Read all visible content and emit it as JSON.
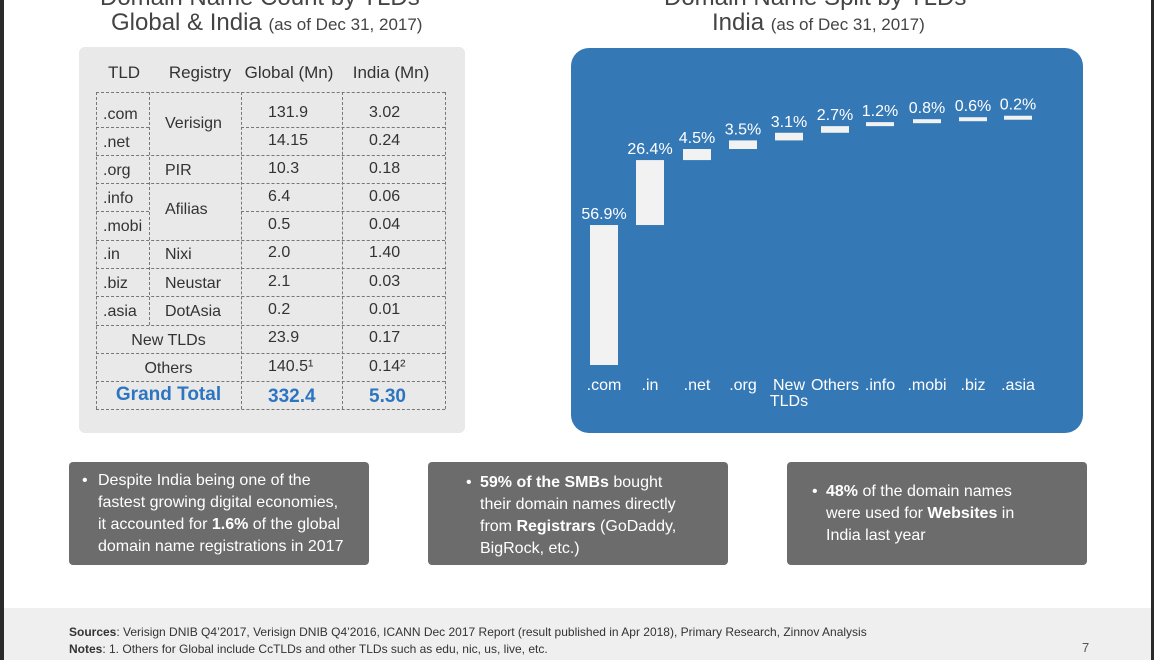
{
  "left": {
    "title_cut": "Domain Name Count by TLDs",
    "title_main": "Global & India",
    "title_sub": "(as of Dec 31, 2017)",
    "headers": [
      "TLD",
      "Registry",
      "Global (Mn)",
      "India (Mn)"
    ],
    "rows": [
      {
        "tld": ".com",
        "global": "131.9",
        "india": "3.02"
      },
      {
        "tld": ".net",
        "global": "14.15",
        "india": "0.24"
      },
      {
        "tld": ".org",
        "global": "10.3",
        "india": "0.18"
      },
      {
        "tld": ".info",
        "global": "6.4",
        "india": "0.06"
      },
      {
        "tld": ".mobi",
        "global": "0.5",
        "india": "0.04"
      },
      {
        "tld": ".in",
        "global": "2.0",
        "india": "1.40"
      },
      {
        "tld": ".biz",
        "global": "2.1",
        "india": "0.03"
      },
      {
        "tld": ".asia",
        "global": "0.2",
        "india": "0.01"
      },
      {
        "tld": "New TLDs",
        "global": "23.9",
        "india": "0.17"
      },
      {
        "tld": "Others",
        "global": "140.5¹",
        "india": "0.14²"
      }
    ],
    "registries": [
      "Verisign",
      "PIR",
      "Afilias",
      "Nixi",
      "Neustar",
      "DotAsia"
    ],
    "grand_total": {
      "label": "Grand Total",
      "global": "332.4",
      "india": "5.30"
    }
  },
  "right": {
    "title_cut": "Domain Name Split by TLDs",
    "title_main": "India",
    "title_sub": "(as of Dec 31, 2017)"
  },
  "chart_data": {
    "type": "bar",
    "subtype": "waterfall",
    "title": "India (as of Dec 31, 2017)",
    "categories": [
      ".com",
      ".in",
      ".net",
      ".org",
      "New TLDs",
      "Others",
      ".info",
      ".mobi",
      ".biz",
      ".asia"
    ],
    "values": [
      56.9,
      26.4,
      4.5,
      3.5,
      3.1,
      2.7,
      1.2,
      0.8,
      0.6,
      0.2
    ],
    "value_labels": [
      "56.9%",
      "26.4%",
      "4.5%",
      "3.5%",
      "3.1%",
      "2.7%",
      "1.2%",
      "0.8%",
      "0.6%",
      "0.2%"
    ],
    "unit": "%",
    "colors": {
      "background": "#3578b6",
      "bar": "#f2f2f2",
      "text": "#ffffff"
    }
  },
  "insights": [
    {
      "parts": [
        {
          "t": "Despite India being one of the",
          "b": false
        },
        {
          "t": "fastest growing digital economies,",
          "b": false
        },
        {
          "t": "it accounted for ",
          "b": false
        },
        {
          "t": "1.6%",
          "b": true
        },
        {
          "t": " of the global",
          "b": false
        },
        {
          "t": "domain name registrations in 2017",
          "b": false
        }
      ]
    },
    {
      "parts": [
        {
          "t": "59% of the SMBs",
          "b": true
        },
        {
          "t": " bought",
          "b": false
        },
        {
          "t": "their domain names directly",
          "b": false
        },
        {
          "t": "from ",
          "b": false
        },
        {
          "t": "Registrars",
          "b": true
        },
        {
          "t": " (GoDaddy,",
          "b": false
        },
        {
          "t": "BigRock, etc.)",
          "b": false
        }
      ]
    },
    {
      "parts": [
        {
          "t": "48%",
          "b": true
        },
        {
          "t": " of the domain names",
          "b": false
        },
        {
          "t": "were used for ",
          "b": false
        },
        {
          "t": "Websites",
          "b": true
        },
        {
          "t": " in",
          "b": false
        },
        {
          "t": "India last year",
          "b": false
        }
      ]
    }
  ],
  "footer": {
    "sources_label": "Sources",
    "sources_text": ": Verisign DNIB Q4’2017, Verisign DNIB Q4’2016, ICANN Dec 2017 Report (result published in Apr 2018), Primary Research, Zinnov Analysis",
    "notes_label": "Notes",
    "notes_text": ": 1. Others for Global include CcTLDs and other TLDs such as edu, nic, us, live, etc.",
    "page_number": "7"
  }
}
